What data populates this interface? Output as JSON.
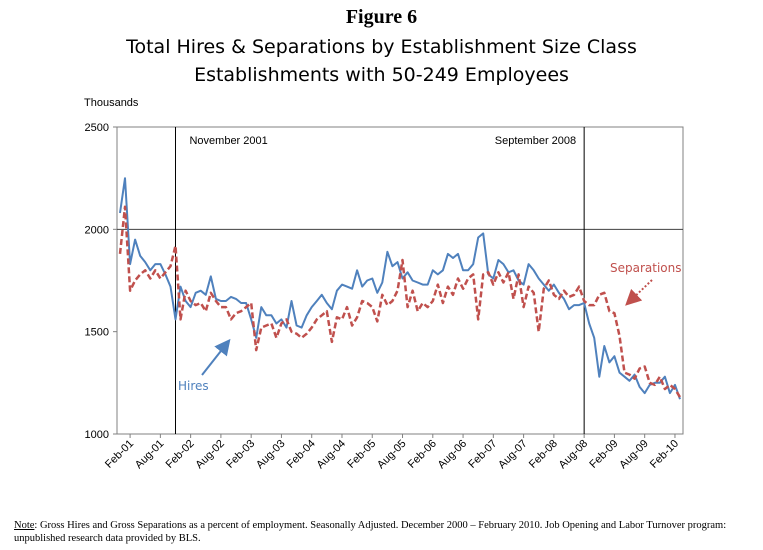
{
  "figure_label": "Figure 6",
  "title_line1": "Total Hires & Separations by Establishment Size Class",
  "title_line2": "Establishments with 50-249 Employees",
  "note_label": "Note",
  "note_text": ":  Gross Hires and Gross Separations as a percent of employment. Seasonally Adjusted. December 2000 – February 2010. Job Opening and Labor Turnover program: unpublished research data provided by BLS.",
  "colors": {
    "hires": "#4F81BD",
    "separations": "#C0504D",
    "grid": "#808080"
  },
  "chart_data": {
    "type": "line",
    "ylabel": "Thousands",
    "ylim": [
      1000,
      2500
    ],
    "yticks": [
      1000,
      1500,
      2000,
      2500
    ],
    "xlabels": [
      "Feb-01",
      "Aug-01",
      "Feb-02",
      "Aug-02",
      "Feb-03",
      "Aug-03",
      "Feb-04",
      "Aug-04",
      "Feb-05",
      "Aug-05",
      "Feb-06",
      "Aug-06",
      "Feb-07",
      "Aug-07",
      "Feb-08",
      "Aug-08",
      "Feb-09",
      "Aug-09",
      "Feb-10"
    ],
    "grid": "horizontal lines at 2000 and 2500",
    "annotations": [
      {
        "text": "November 2001",
        "month_index": 11
      },
      {
        "text": "September 2008",
        "month_index": 92
      }
    ],
    "series": [
      {
        "name": "Hires",
        "style": "solid",
        "values": [
          2080,
          2250,
          1830,
          1950,
          1870,
          1840,
          1800,
          1830,
          1830,
          1780,
          1720,
          1560,
          1720,
          1650,
          1620,
          1690,
          1700,
          1680,
          1770,
          1660,
          1650,
          1650,
          1670,
          1660,
          1640,
          1640,
          1560,
          1470,
          1620,
          1580,
          1580,
          1540,
          1560,
          1520,
          1650,
          1530,
          1520,
          1580,
          1620,
          1650,
          1680,
          1640,
          1610,
          1700,
          1730,
          1720,
          1710,
          1800,
          1720,
          1750,
          1760,
          1690,
          1740,
          1890,
          1820,
          1840,
          1760,
          1790,
          1750,
          1740,
          1730,
          1730,
          1800,
          1780,
          1800,
          1880,
          1860,
          1880,
          1800,
          1800,
          1830,
          1960,
          1980,
          1780,
          1760,
          1850,
          1830,
          1790,
          1800,
          1750,
          1730,
          1830,
          1800,
          1760,
          1730,
          1700,
          1730,
          1690,
          1660,
          1610,
          1630,
          1630,
          1640,
          1540,
          1470,
          1280,
          1430,
          1350,
          1380,
          1300,
          1280,
          1260,
          1290,
          1230,
          1200,
          1240,
          1250,
          1250,
          1280,
          1200,
          1240,
          1170
        ]
      },
      {
        "name": "Separations",
        "style": "dashed",
        "values": [
          1880,
          2110,
          1700,
          1750,
          1780,
          1800,
          1760,
          1800,
          1760,
          1790,
          1820,
          1920,
          1560,
          1700,
          1650,
          1630,
          1640,
          1600,
          1690,
          1650,
          1620,
          1620,
          1560,
          1590,
          1600,
          1620,
          1640,
          1410,
          1520,
          1530,
          1540,
          1470,
          1540,
          1560,
          1500,
          1490,
          1470,
          1490,
          1520,
          1560,
          1580,
          1600,
          1450,
          1570,
          1560,
          1620,
          1530,
          1570,
          1650,
          1640,
          1620,
          1550,
          1680,
          1630,
          1650,
          1700,
          1850,
          1620,
          1700,
          1600,
          1640,
          1620,
          1650,
          1730,
          1640,
          1720,
          1680,
          1760,
          1710,
          1760,
          1780,
          1560,
          1780,
          1790,
          1730,
          1790,
          1740,
          1790,
          1660,
          1780,
          1620,
          1720,
          1690,
          1500,
          1710,
          1750,
          1680,
          1660,
          1700,
          1670,
          1680,
          1720,
          1650,
          1630,
          1630,
          1680,
          1690,
          1600,
          1590,
          1480,
          1300,
          1290,
          1270,
          1320,
          1330,
          1250,
          1240,
          1280,
          1220,
          1240,
          1220,
          1180
        ]
      }
    ]
  },
  "chart_labels": {
    "hires": "Hires",
    "separations": "Separations"
  }
}
